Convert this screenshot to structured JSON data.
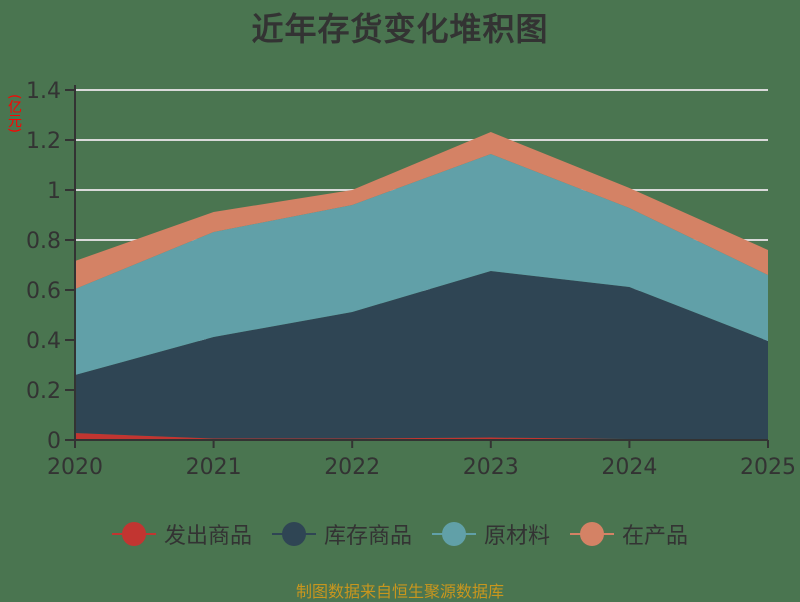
{
  "title": "近年存货变化堆积图",
  "unit_label": "(亿元)",
  "footer": "制图数据来自恒生聚源数据库",
  "colors": {
    "background": "#4a7550",
    "grid": "#d9d9d9",
    "axis": "#333333"
  },
  "chart_data": {
    "type": "area",
    "stacked": true,
    "title": "近年存货变化堆积图",
    "xlabel": "",
    "ylabel": "(亿元)",
    "categories": [
      "2020",
      "2021",
      "2022",
      "2023",
      "2024",
      "2025"
    ],
    "ylim": [
      0,
      1.4
    ],
    "yticks": [
      "0",
      "0.2",
      "0.4",
      "0.6",
      "0.8",
      "1",
      "1.2",
      "1.4"
    ],
    "grid": true,
    "legend_position": "bottom",
    "series": [
      {
        "name": "发出商品",
        "color": "#c23531",
        "values": [
          0.028,
          0.006,
          0.006,
          0.01,
          0.004,
          0.002
        ]
      },
      {
        "name": "库存商品",
        "color": "#2f4554",
        "values": [
          0.232,
          0.406,
          0.506,
          0.666,
          0.608,
          0.394
        ]
      },
      {
        "name": "原材料",
        "color": "#61a0a8",
        "values": [
          0.344,
          0.42,
          0.428,
          0.468,
          0.316,
          0.264
        ]
      },
      {
        "name": "在产品",
        "color": "#d48265",
        "values": [
          0.112,
          0.08,
          0.06,
          0.088,
          0.08,
          0.1
        ]
      }
    ]
  }
}
